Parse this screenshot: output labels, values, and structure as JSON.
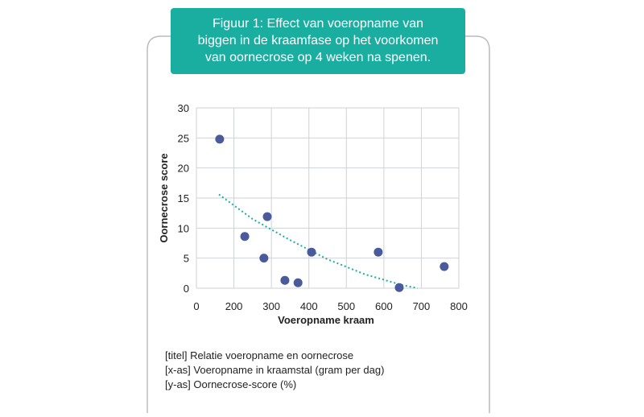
{
  "chart_data": {
    "type": "scatter",
    "title": [
      "Figuur 1: Effect van voeropname van",
      "biggen in de kraamfase op het voorkomen",
      "van oornecrose op 4 weken na spenen."
    ],
    "x_label": "Voeropname kraam",
    "y_label": "Oornecrose score",
    "notes": [
      "[titel] Relatie voeropname en oornecrose",
      "[x-as] Voeropname in kraamstal (gram per dag)",
      "[y-as] Oornecrose-score (%)"
    ],
    "color": "#4a5a9a",
    "x": [
      162,
      229,
      280,
      289,
      336,
      371,
      407,
      585,
      641,
      761
    ],
    "values": [
      24.8,
      8.6,
      5.0,
      11.9,
      1.3,
      0.9,
      6.0,
      6.0,
      0.1,
      3.6
    ],
    "trend": {
      "color": "#1aaea0",
      "x": [
        160,
        250,
        350,
        450,
        550,
        650,
        690
      ],
      "values": [
        15.6,
        11.5,
        8.0,
        4.8,
        2.3,
        0.5,
        0
      ]
    },
    "xlim": [
      100,
      800
    ],
    "xticks": [
      {
        "value": 100,
        "label": "0"
      },
      200,
      300,
      400,
      500,
      600,
      700,
      800
    ],
    "ylim": [
      0,
      30
    ],
    "yticks": [
      0,
      5,
      10,
      15,
      20,
      25,
      30
    ],
    "grid": true
  }
}
